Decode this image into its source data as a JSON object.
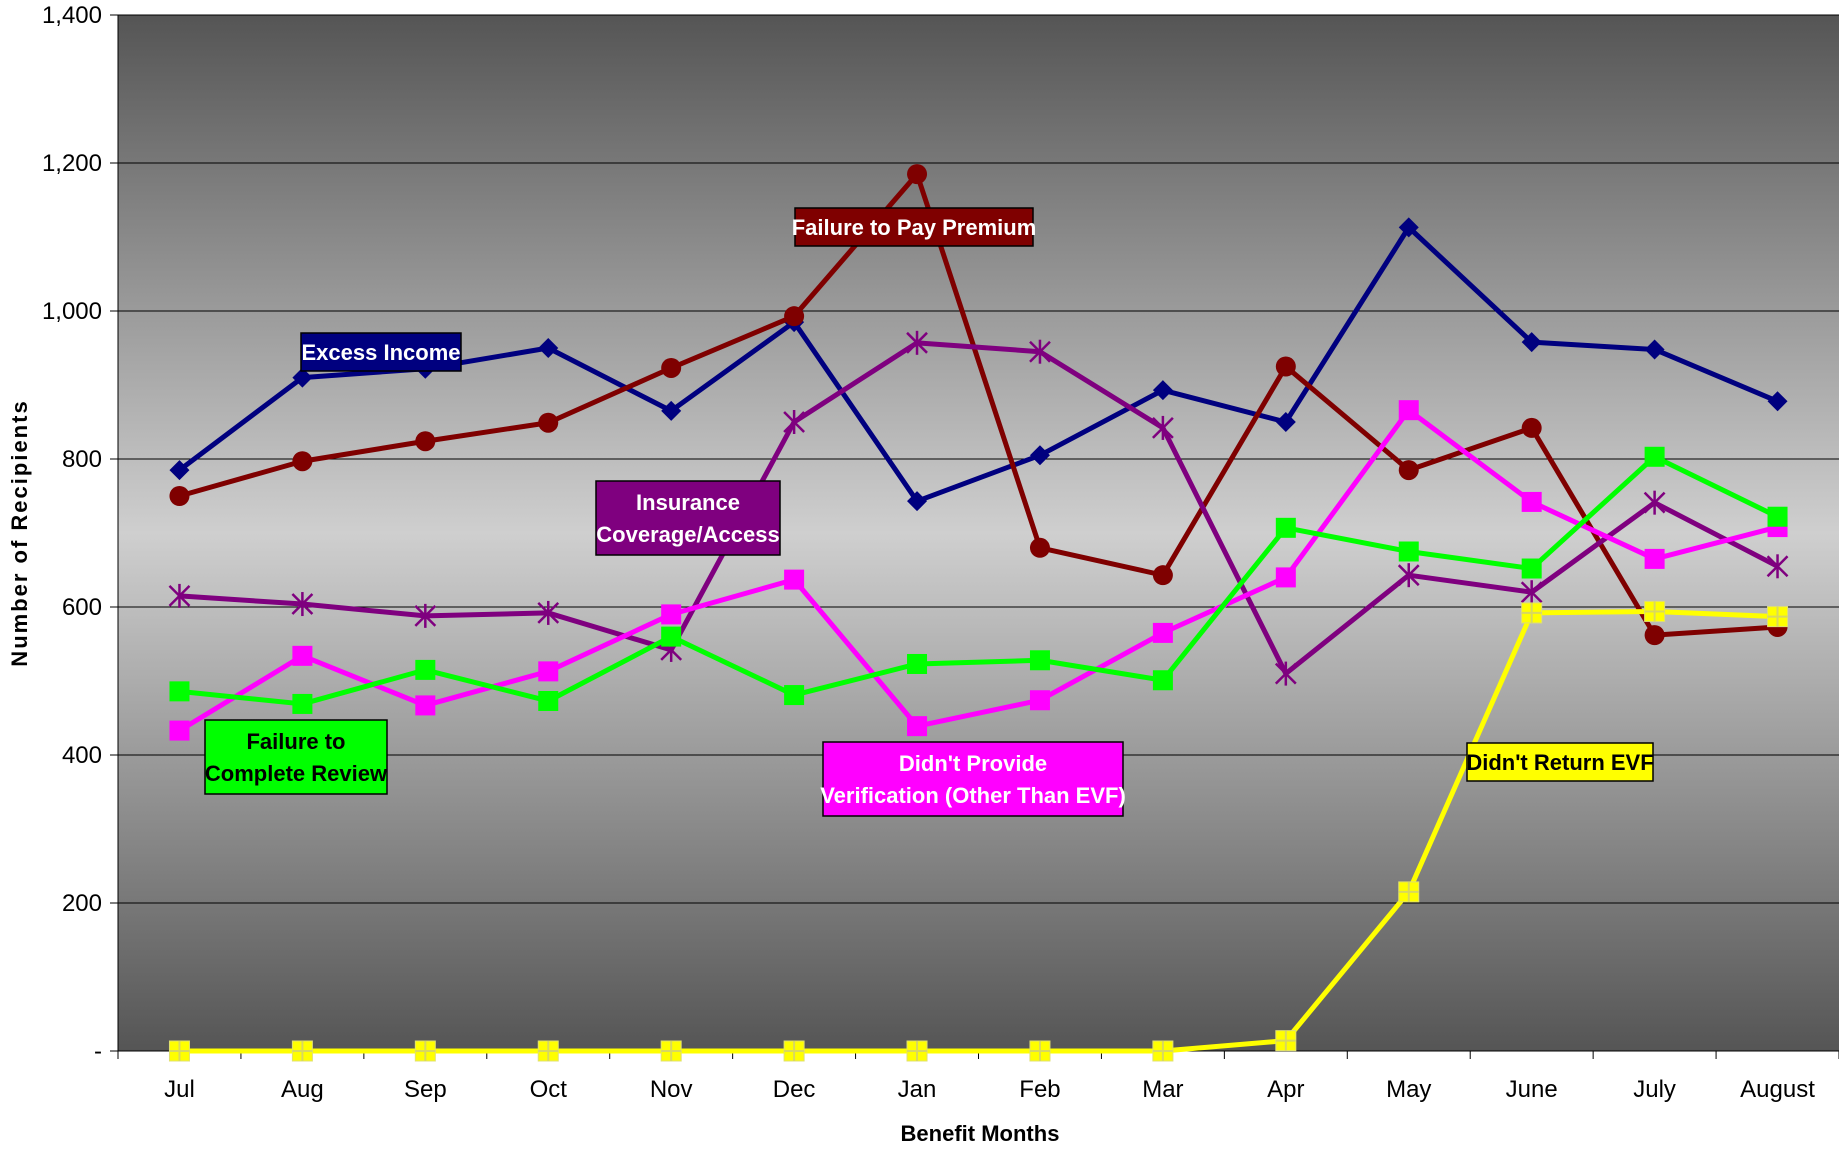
{
  "chart_data": {
    "type": "line",
    "title": "",
    "xlabel": "Benefit Months",
    "ylabel": "Number of Recipients",
    "ylim": [
      0,
      1400
    ],
    "yticks": [
      0,
      200,
      400,
      600,
      800,
      1000,
      1200,
      1400
    ],
    "ytick_labels": [
      "-",
      "200",
      "400",
      "600",
      "800",
      "1,000",
      "1,200",
      "1,400"
    ],
    "grid": true,
    "legend": "none (inline labels)",
    "categories": [
      "Jul",
      "Aug",
      "Sep",
      "Oct",
      "Nov",
      "Dec",
      "Jan",
      "Feb",
      "Mar",
      "Apr",
      "May",
      "June",
      "July",
      "August"
    ],
    "series": [
      {
        "name": "Excess Income",
        "color": "#00007f",
        "marker": "diamond",
        "label_fill": "#00007f",
        "label_text_color": "#ffffff",
        "values": [
          785,
          910,
          922,
          950,
          865,
          985,
          743,
          805,
          893,
          850,
          1113,
          958,
          948,
          878
        ]
      },
      {
        "name": "Failure to Pay Premium",
        "color": "#7f0000",
        "marker": "circle",
        "label_fill": "#7f0000",
        "label_text_color": "#ffffff",
        "values": [
          750,
          797,
          824,
          849,
          923,
          993,
          1185,
          680,
          643,
          925,
          785,
          842,
          562,
          573
        ]
      },
      {
        "name": "Insurance Coverage/Access",
        "color": "#7f007f",
        "marker": "star",
        "label_fill": "#7f007f",
        "label_text_color": "#ffffff",
        "values": [
          615,
          604,
          588,
          592,
          542,
          850,
          957,
          945,
          842,
          510,
          643,
          620,
          741,
          655
        ]
      },
      {
        "name": "Didn't Provide Verification (Other Than EVF)",
        "color": "#ff00ff",
        "marker": "square",
        "label_fill": "#ff00ff",
        "label_text_color": "#ffffff",
        "values": [
          433,
          534,
          467,
          513,
          590,
          637,
          439,
          474,
          565,
          640,
          866,
          742,
          665,
          708
        ]
      },
      {
        "name": "Failure to Complete Review",
        "color": "#00ff00",
        "marker": "square",
        "label_fill": "#00ff00",
        "label_text_color": "#000000",
        "values": [
          486,
          469,
          515,
          473,
          560,
          481,
          523,
          528,
          501,
          707,
          675,
          652,
          803,
          722
        ]
      },
      {
        "name": "Didn't Return EVF",
        "color": "#ffff00",
        "marker": "square-cross",
        "label_fill": "#ffff00",
        "label_text_color": "#000000",
        "values": [
          0,
          0,
          0,
          0,
          0,
          0,
          0,
          0,
          0,
          14,
          215,
          592,
          594,
          587
        ]
      }
    ],
    "annotations": [
      {
        "series": "Excess Income",
        "lines": [
          "Excess Income"
        ]
      },
      {
        "series": "Failure to Pay Premium",
        "lines": [
          "Failure to Pay Premium"
        ]
      },
      {
        "series": "Insurance Coverage/Access",
        "lines": [
          "Insurance",
          "Coverage/Access"
        ]
      },
      {
        "series": "Failure to Complete Review",
        "lines": [
          "Failure to",
          "Complete Review"
        ]
      },
      {
        "series": "Didn't Provide Verification (Other Than EVF)",
        "lines": [
          "Didn't Provide",
          "Verification (Other Than EVF)"
        ]
      },
      {
        "series": "Didn't Return EVF",
        "lines": [
          "Didn't Return EVF"
        ]
      }
    ]
  }
}
